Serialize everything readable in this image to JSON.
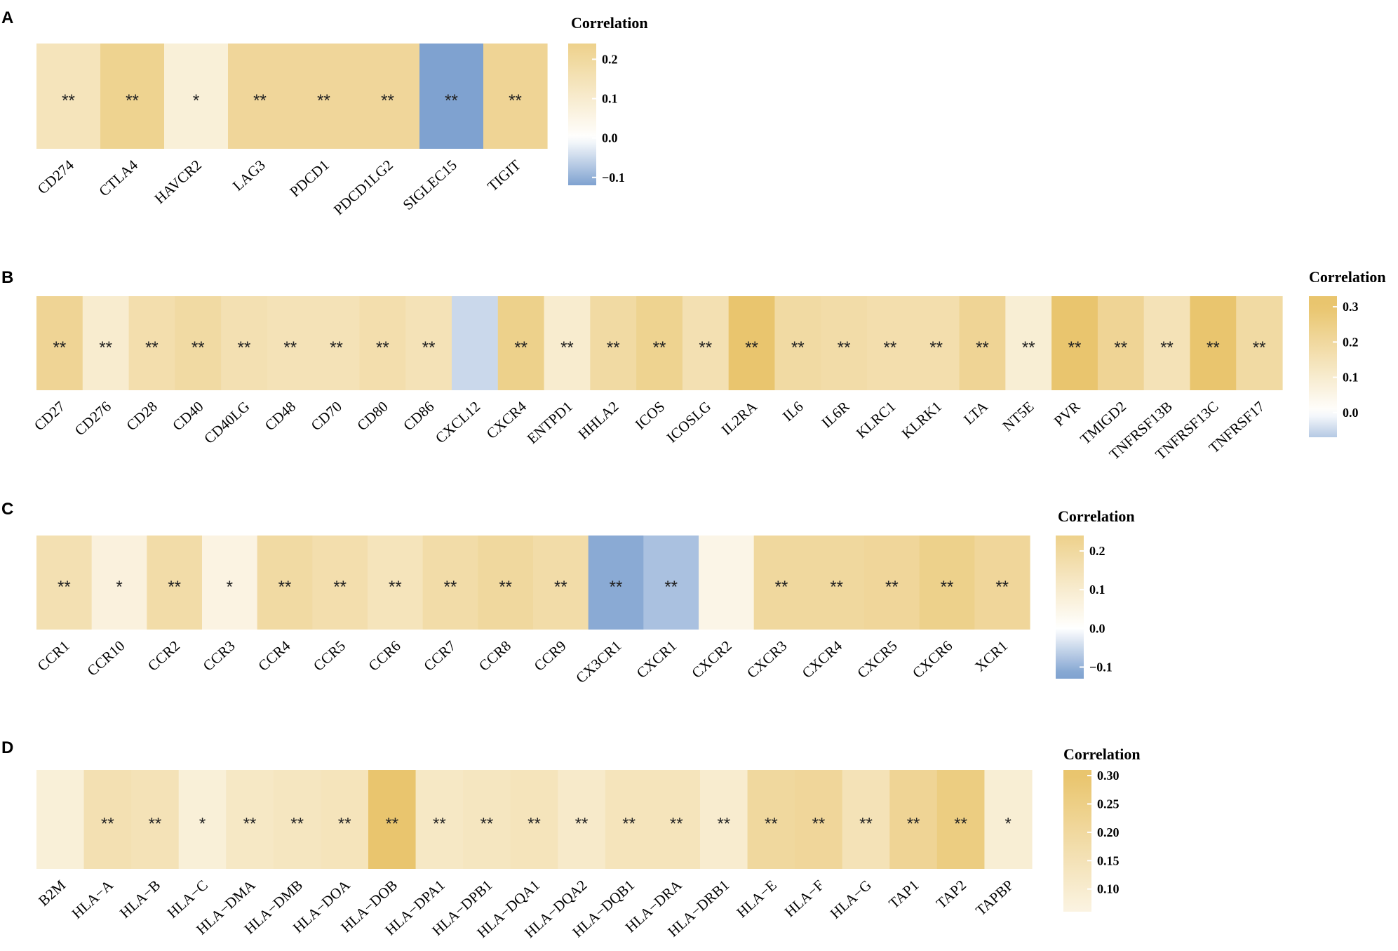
{
  "colors": {
    "low": "#7fa2d0",
    "mid": "#ffffff",
    "high": "#e9c56e"
  },
  "chart_data": [
    {
      "type": "heatmap",
      "panel": "A",
      "legend_title": "Correlation",
      "legend_ticks": [
        {
          "v": 0.2,
          "t": "0.2"
        },
        {
          "v": 0.1,
          "t": "0.1"
        },
        {
          "v": 0.0,
          "t": "0.0"
        },
        {
          "v": -0.1,
          "t": "−0.1"
        }
      ],
      "legend_range": [
        -0.12,
        0.24
      ],
      "categories": [
        "CD274",
        "CTLA4",
        "HAVCR2",
        "LAG3",
        "PDCD1",
        "PDCD1LG2",
        "SIGLEC15",
        "TIGIT"
      ],
      "values": [
        0.14,
        0.23,
        0.08,
        0.21,
        0.21,
        0.21,
        -0.12,
        0.22
      ],
      "significance": [
        "**",
        "**",
        "*",
        "**",
        "**",
        "**",
        "**",
        "**"
      ]
    },
    {
      "type": "heatmap",
      "panel": "B",
      "legend_title": "Correlation",
      "legend_ticks": [
        {
          "v": 0.3,
          "t": "0.3"
        },
        {
          "v": 0.2,
          "t": "0.2"
        },
        {
          "v": 0.1,
          "t": "0.1"
        },
        {
          "v": 0.0,
          "t": "0.0"
        }
      ],
      "legend_range": [
        -0.07,
        0.33
      ],
      "categories": [
        "CD27",
        "CD276",
        "CD28",
        "CD40",
        "CD40LG",
        "CD48",
        "CD70",
        "CD80",
        "CD86",
        "CXCL12",
        "CXCR4",
        "ENTPD1",
        "HHLA2",
        "ICOS",
        "ICOSLG",
        "IL2RA",
        "IL6",
        "IL6R",
        "KLRC1",
        "KLRK1",
        "LTA",
        "NT5E",
        "PVR",
        "TMIGD2",
        "TNFRSF13B",
        "TNFRSF13C",
        "TNFRSF17"
      ],
      "values": [
        0.22,
        0.1,
        0.17,
        0.19,
        0.16,
        0.15,
        0.15,
        0.17,
        0.15,
        -0.05,
        0.24,
        0.1,
        0.19,
        0.23,
        0.16,
        0.33,
        0.19,
        0.18,
        0.17,
        0.17,
        0.22,
        0.09,
        0.3,
        0.22,
        0.15,
        0.33,
        0.19
      ],
      "significance": [
        "**",
        "**",
        "**",
        "**",
        "**",
        "**",
        "**",
        "**",
        "**",
        "",
        "**",
        "**",
        "**",
        "**",
        "**",
        "**",
        "**",
        "**",
        "**",
        "**",
        "**",
        "**",
        "**",
        "**",
        "**",
        "**",
        "**"
      ]
    },
    {
      "type": "heatmap",
      "panel": "C",
      "legend_title": "Correlation",
      "legend_ticks": [
        {
          "v": 0.2,
          "t": "0.2"
        },
        {
          "v": 0.1,
          "t": "0.1"
        },
        {
          "v": 0.0,
          "t": "0.0"
        },
        {
          "v": -0.1,
          "t": "−0.1"
        }
      ],
      "legend_range": [
        -0.13,
        0.24
      ],
      "categories": [
        "CCR1",
        "CCR10",
        "CCR2",
        "CCR3",
        "CCR4",
        "CCR5",
        "CCR6",
        "CCR7",
        "CCR8",
        "CCR9",
        "CX3CR1",
        "CXCR1",
        "CXCR2",
        "CXCR3",
        "CXCR4",
        "CXCR5",
        "CXCR6",
        "XCR1"
      ],
      "values": [
        0.16,
        0.07,
        0.18,
        0.06,
        0.19,
        0.17,
        0.14,
        0.18,
        0.2,
        0.18,
        -0.11,
        -0.08,
        0.05,
        0.2,
        0.2,
        0.21,
        0.24,
        0.21
      ],
      "significance": [
        "**",
        "*",
        "**",
        "*",
        "**",
        "**",
        "**",
        "**",
        "**",
        "**",
        "**",
        "**",
        "",
        "**",
        "**",
        "**",
        "**",
        "**"
      ]
    },
    {
      "type": "heatmap",
      "panel": "D",
      "legend_title": "Correlation",
      "legend_ticks": [
        {
          "v": 0.3,
          "t": "0.30"
        },
        {
          "v": 0.25,
          "t": "0.25"
        },
        {
          "v": 0.2,
          "t": "0.20"
        },
        {
          "v": 0.15,
          "t": "0.15"
        },
        {
          "v": 0.1,
          "t": "0.10"
        }
      ],
      "legend_range": [
        0.06,
        0.31
      ],
      "categories": [
        "B2M",
        "HLA−A",
        "HLA−B",
        "HLA−C",
        "HLA−DMA",
        "HLA−DMB",
        "HLA−DOA",
        "HLA−DOB",
        "HLA−DPA1",
        "HLA−DPB1",
        "HLA−DQA1",
        "HLA−DQA2",
        "HLA−DQB1",
        "HLA−DRA",
        "HLA−DRB1",
        "HLA−E",
        "HLA−F",
        "HLA−G",
        "TAP1",
        "TAP2",
        "TAPBP"
      ],
      "values": [
        0.08,
        0.16,
        0.15,
        0.08,
        0.12,
        0.13,
        0.14,
        0.32,
        0.12,
        0.13,
        0.14,
        0.11,
        0.14,
        0.14,
        0.1,
        0.2,
        0.21,
        0.15,
        0.22,
        0.26,
        0.09
      ],
      "significance": [
        "",
        "**",
        "**",
        "*",
        "**",
        "**",
        "**",
        "**",
        "**",
        "**",
        "**",
        "**",
        "**",
        "**",
        "**",
        "**",
        "**",
        "**",
        "**",
        "**",
        "*"
      ]
    }
  ]
}
